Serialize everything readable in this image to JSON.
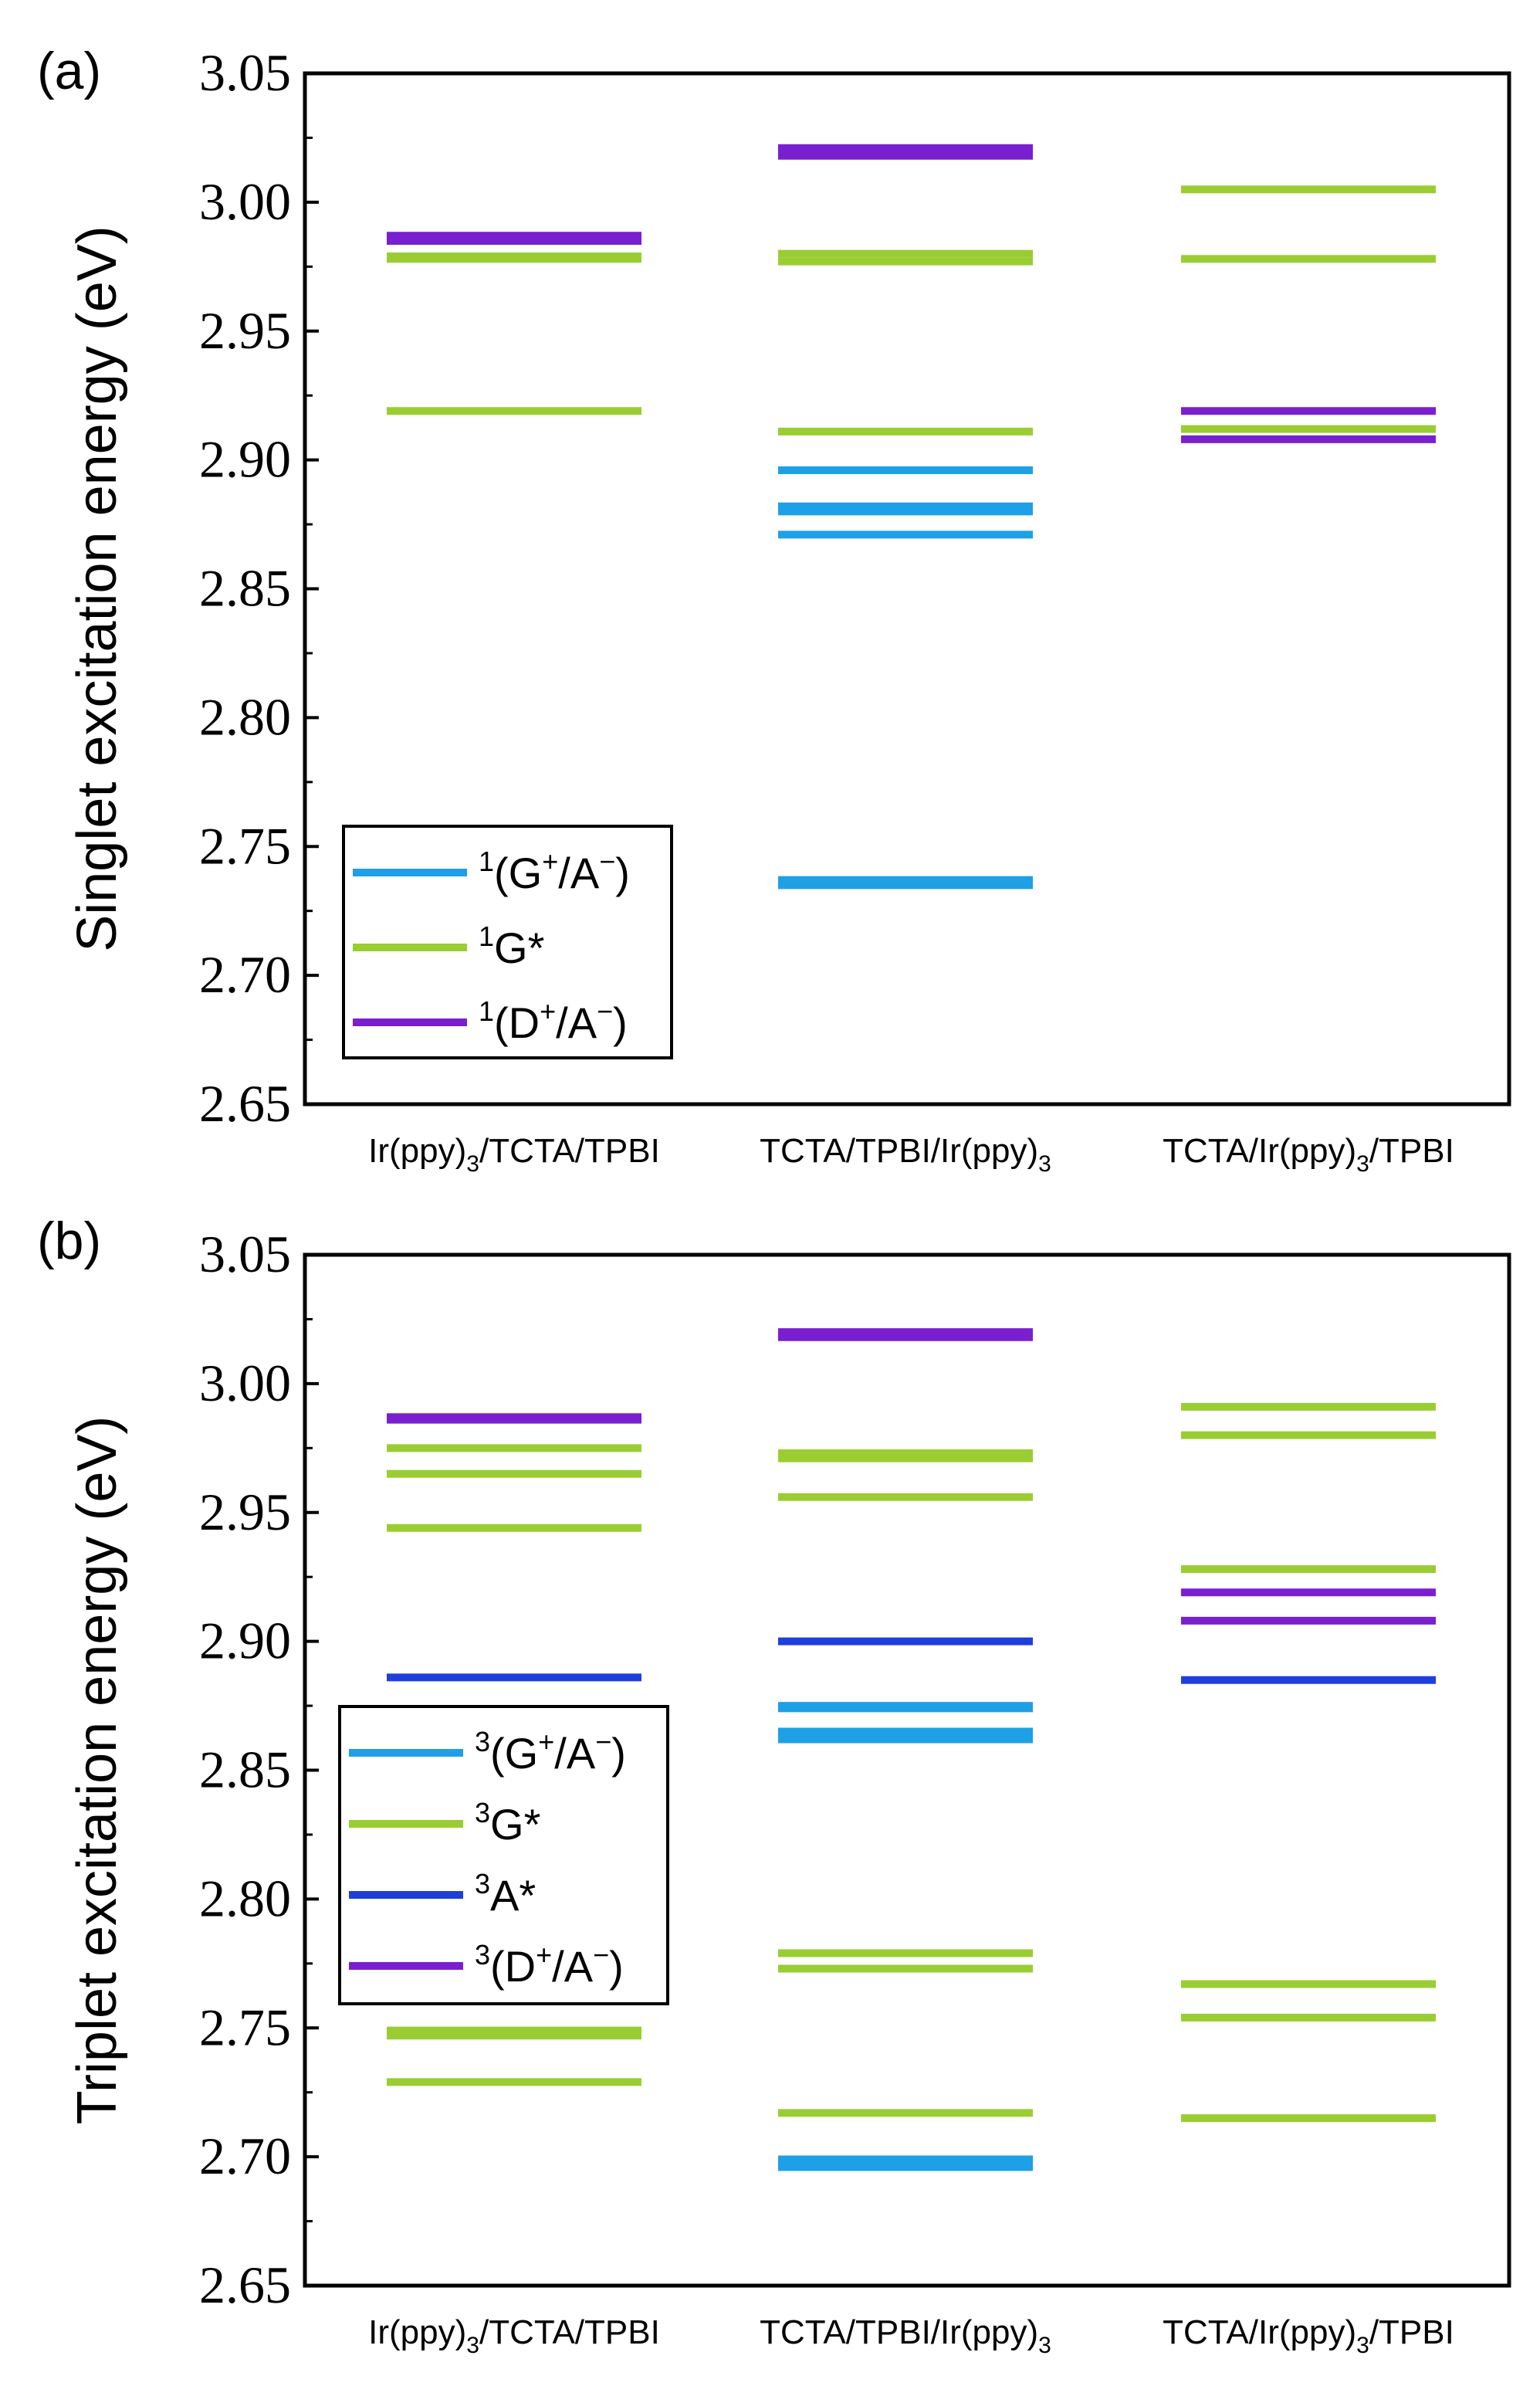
{
  "chart_data": [
    {
      "type": "energy-level",
      "panel_label": "(a)",
      "ylabel": "Singlet excitation energy (eV)",
      "ylim": [
        2.65,
        3.05
      ],
      "yticks": [
        "2.65",
        "2.70",
        "2.75",
        "2.80",
        "2.85",
        "2.90",
        "2.95",
        "3.00",
        "3.05"
      ],
      "categories": [
        {
          "base": "Ir(ppy)",
          "sub": "3",
          "tail": "/TCTA/TPBI",
          "full": "Ir(ppy)3/TCTA/TPBI"
        },
        {
          "base": "TCTA/TPBI/Ir(ppy)",
          "sub": "3",
          "tail": "",
          "full": "TCTA/TPBI/Ir(ppy)3"
        },
        {
          "base": "TCTA/Ir(ppy)",
          "sub": "3",
          "tail": "/TPBI",
          "full": "TCTA/Ir(ppy)3/TPBI"
        }
      ],
      "legend": [
        {
          "sup": "1",
          "pre": "(G",
          "sup2": "+",
          "mid": "/A",
          "sup3": "−",
          "post": ")",
          "full": "1(G+/A−)",
          "color": "#1ea0e6"
        },
        {
          "sup": "1",
          "pre": "G*",
          "sup2": "",
          "mid": "",
          "sup3": "",
          "post": "",
          "full": "1G*",
          "color": "#9acd32"
        },
        {
          "sup": "1",
          "pre": "(D",
          "sup2": "+",
          "mid": "/A",
          "sup3": "−",
          "post": ")",
          "full": "1(D+/A−)",
          "color": "#7a1fd0"
        }
      ],
      "series": [
        {
          "name": "1(G+/A−)",
          "color": "#1ea0e6",
          "levels": [
            [],
            [
              2.896,
              2.882,
              2.88,
              2.871,
              2.737,
              2.735
            ],
            []
          ]
        },
        {
          "name": "1G*",
          "color": "#9acd32",
          "levels": [
            [
              2.979,
              2.978,
              2.919
            ],
            [
              2.98,
              2.977,
              2.911
            ],
            [
              3.005,
              2.978,
              2.912
            ]
          ]
        },
        {
          "name": "1(D+/A−)",
          "color": "#7a1fd0",
          "levels": [
            [
              2.987,
              2.985
            ],
            [
              3.021,
              3.02,
              3.018
            ],
            [
              2.919,
              2.908
            ]
          ]
        }
      ]
    },
    {
      "type": "energy-level",
      "panel_label": "(b)",
      "ylabel": "Triplet excitation energy (eV)",
      "ylim": [
        2.65,
        3.05
      ],
      "yticks": [
        "2.65",
        "2.70",
        "2.75",
        "2.80",
        "2.85",
        "2.90",
        "2.95",
        "3.00",
        "3.05"
      ],
      "categories": [
        {
          "base": "Ir(ppy)",
          "sub": "3",
          "tail": "/TCTA/TPBI",
          "full": "Ir(ppy)3/TCTA/TPBI"
        },
        {
          "base": "TCTA/TPBI/Ir(ppy)",
          "sub": "3",
          "tail": "",
          "full": "TCTA/TPBI/Ir(ppy)3"
        },
        {
          "base": "TCTA/Ir(ppy)",
          "sub": "3",
          "tail": "/TPBI",
          "full": "TCTA/Ir(ppy)3/TPBI"
        }
      ],
      "legend": [
        {
          "sup": "3",
          "pre": "(G",
          "sup2": "+",
          "mid": "/A",
          "sup3": "−",
          "post": ")",
          "full": "3(G+/A−)",
          "color": "#1ea0e6"
        },
        {
          "sup": "3",
          "pre": "G*",
          "sup2": "",
          "mid": "",
          "sup3": "",
          "post": "",
          "full": "3G*",
          "color": "#9acd32"
        },
        {
          "sup": "3",
          "pre": "A*",
          "sup2": "",
          "mid": "",
          "sup3": "",
          "post": "",
          "full": "3A*",
          "color": "#1f3fdc"
        },
        {
          "sup": "3",
          "pre": "(D",
          "sup2": "+",
          "mid": "/A",
          "sup3": "−",
          "post": ")",
          "full": "3(D+/A−)",
          "color": "#7a1fd0"
        }
      ],
      "series": [
        {
          "name": "3(G+/A−)",
          "color": "#1ea0e6",
          "levels": [
            [],
            [
              2.875,
              2.874,
              2.865,
              2.862,
              2.699,
              2.696
            ],
            []
          ]
        },
        {
          "name": "3G*",
          "color": "#9acd32",
          "levels": [
            [
              2.975,
              2.965,
              2.944,
              2.749,
              2.747,
              2.729
            ],
            [
              2.973,
              2.971,
              2.956,
              2.779,
              2.773,
              2.717
            ],
            [
              2.991,
              2.98,
              2.928,
              2.767,
              2.754,
              2.715
            ]
          ]
        },
        {
          "name": "3A*",
          "color": "#1f3fdc",
          "levels": [
            [
              2.886
            ],
            [
              2.9
            ],
            [
              2.885
            ]
          ]
        },
        {
          "name": "3(D+/A−)",
          "color": "#7a1fd0",
          "levels": [
            [
              2.987,
              2.986
            ],
            [
              3.02,
              3.019,
              3.018
            ],
            [
              2.919,
              2.908
            ]
          ]
        }
      ]
    }
  ]
}
